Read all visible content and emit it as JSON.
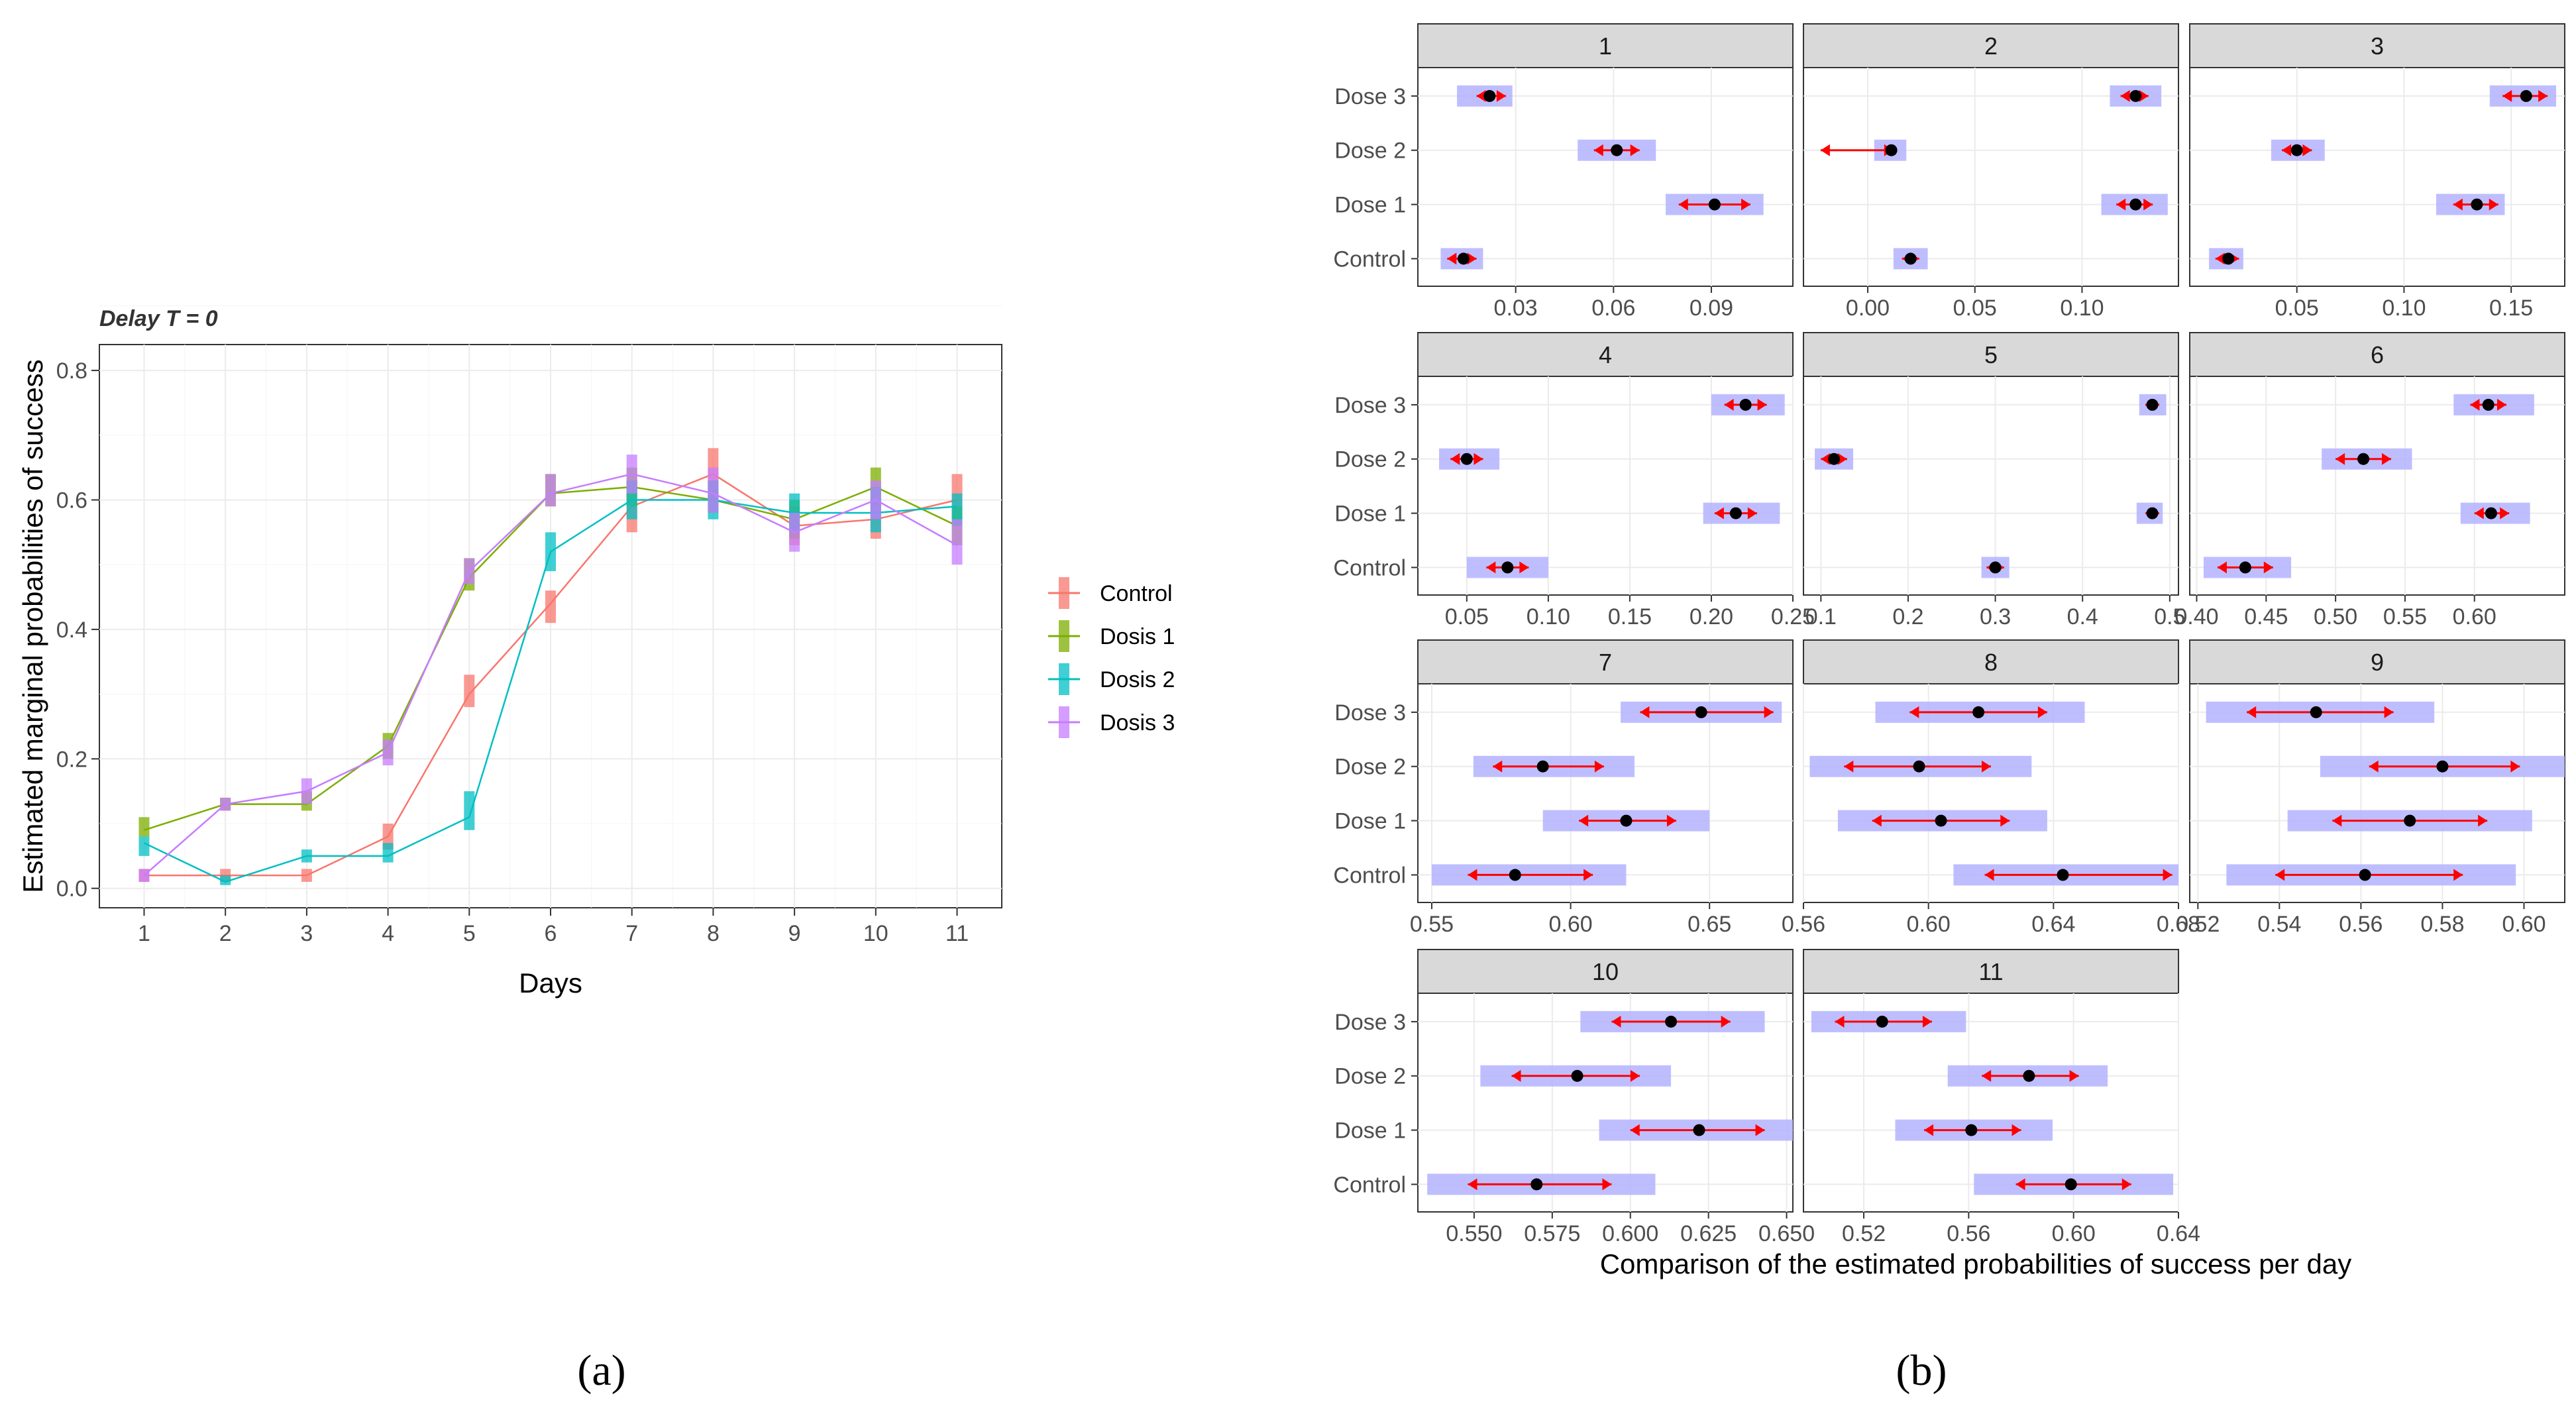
{
  "figure": {
    "caption_a": "(a)",
    "caption_b": "(b)"
  },
  "colors": {
    "Control": "#f8766d",
    "Dosis 1": "#7cae00",
    "Dosis 2": "#00bfc4",
    "Dosis 3": "#c77cff",
    "interval_fill": "#b3b3ff",
    "arrow": "#ff0000",
    "point": "#000000",
    "strip": "#d9d9d9"
  },
  "chart_data": [
    {
      "type": "line",
      "title": "Delay T = 0",
      "xlabel": "Days",
      "ylabel": "Estimated marginal probabilities of success",
      "xlim": [
        0.45,
        11.55
      ],
      "ylim": [
        -0.03,
        0.84
      ],
      "x_ticks": [
        "1",
        "2",
        "3",
        "4",
        "5",
        "6",
        "7",
        "8",
        "9",
        "10",
        "11"
      ],
      "y_ticks": [
        "0.0",
        "0.2",
        "0.4",
        "0.6",
        "0.8"
      ],
      "legend_position": "right",
      "categories": [
        1,
        2,
        3,
        4,
        5,
        6,
        7,
        8,
        9,
        10,
        11
      ],
      "series": [
        {
          "name": "Control",
          "values": [
            0.02,
            0.02,
            0.02,
            0.08,
            0.3,
            0.44,
            0.59,
            0.64,
            0.56,
            0.57,
            0.6
          ],
          "err_low": [
            0.01,
            0.01,
            0.01,
            0.06,
            0.28,
            0.41,
            0.55,
            0.6,
            0.53,
            0.54,
            0.56
          ],
          "err_high": [
            0.03,
            0.03,
            0.03,
            0.1,
            0.33,
            0.46,
            0.63,
            0.68,
            0.59,
            0.6,
            0.64
          ]
        },
        {
          "name": "Dosis 1",
          "values": [
            0.09,
            0.13,
            0.13,
            0.22,
            0.48,
            0.61,
            0.62,
            0.6,
            0.57,
            0.62,
            0.56
          ],
          "err_low": [
            0.08,
            0.12,
            0.12,
            0.2,
            0.46,
            0.59,
            0.59,
            0.58,
            0.54,
            0.59,
            0.53
          ],
          "err_high": [
            0.11,
            0.14,
            0.15,
            0.24,
            0.51,
            0.64,
            0.65,
            0.63,
            0.6,
            0.65,
            0.59
          ]
        },
        {
          "name": "Dosis 2",
          "values": [
            0.07,
            0.01,
            0.05,
            0.05,
            0.11,
            0.52,
            0.6,
            0.6,
            0.58,
            0.58,
            0.59
          ],
          "err_low": [
            0.05,
            0.005,
            0.04,
            0.04,
            0.09,
            0.49,
            0.57,
            0.57,
            0.55,
            0.55,
            0.56
          ],
          "err_high": [
            0.08,
            0.02,
            0.06,
            0.07,
            0.15,
            0.55,
            0.63,
            0.63,
            0.61,
            0.62,
            0.61
          ]
        },
        {
          "name": "Dosis 3",
          "values": [
            0.02,
            0.13,
            0.15,
            0.21,
            0.49,
            0.61,
            0.64,
            0.61,
            0.55,
            0.6,
            0.53
          ],
          "err_low": [
            0.01,
            0.12,
            0.13,
            0.19,
            0.47,
            0.59,
            0.61,
            0.58,
            0.52,
            0.57,
            0.5
          ],
          "err_high": [
            0.03,
            0.14,
            0.17,
            0.23,
            0.51,
            0.64,
            0.67,
            0.65,
            0.58,
            0.63,
            0.57
          ]
        }
      ]
    },
    {
      "type": "scatter",
      "xlabel": "Comparison of the estimated probabilities of success per day",
      "rows": [
        "Dose 3",
        "Dose 2",
        "Dose 1",
        "Control"
      ],
      "facets": [
        {
          "label": "1",
          "xlim": [
            0.0,
            0.115
          ],
          "x_ticks": [
            "0.03",
            "0.06",
            "0.09"
          ],
          "x_tick_values": [
            0.03,
            0.06,
            0.09
          ],
          "intervals": [
            {
              "row": "Dose 3",
              "estimate": 0.022,
              "low": 0.018,
              "high": 0.027,
              "band_low": 0.012,
              "band_high": 0.029
            },
            {
              "row": "Dose 2",
              "estimate": 0.061,
              "low": 0.054,
              "high": 0.068,
              "band_low": 0.049,
              "band_high": 0.073
            },
            {
              "row": "Dose 1",
              "estimate": 0.091,
              "low": 0.08,
              "high": 0.102,
              "band_low": 0.076,
              "band_high": 0.106
            },
            {
              "row": "Control",
              "estimate": 0.014,
              "low": 0.009,
              "high": 0.018,
              "band_low": 0.007,
              "band_high": 0.02
            }
          ]
        },
        {
          "label": "2",
          "xlim": [
            -0.03,
            0.145
          ],
          "x_ticks": [
            "0.00",
            "0.05",
            "0.10"
          ],
          "x_tick_values": [
            0.0,
            0.05,
            0.1
          ],
          "intervals": [
            {
              "row": "Dose 3",
              "estimate": 0.125,
              "low": 0.118,
              "high": 0.131,
              "band_low": 0.113,
              "band_high": 0.137
            },
            {
              "row": "Dose 2",
              "estimate": 0.011,
              "low": -0.022,
              "high": 0.012,
              "band_low": 0.003,
              "band_high": 0.018
            },
            {
              "row": "Dose 1",
              "estimate": 0.125,
              "low": 0.116,
              "high": 0.133,
              "band_low": 0.109,
              "band_high": 0.14
            },
            {
              "row": "Control",
              "estimate": 0.02,
              "low": 0.016,
              "high": 0.024,
              "band_low": 0.012,
              "band_high": 0.028
            }
          ]
        },
        {
          "label": "3",
          "xlim": [
            0.0,
            0.175
          ],
          "x_ticks": [
            "0.05",
            "0.10",
            "0.15"
          ],
          "x_tick_values": [
            0.05,
            0.1,
            0.15
          ],
          "intervals": [
            {
              "row": "Dose 3",
              "estimate": 0.157,
              "low": 0.146,
              "high": 0.167,
              "band_low": 0.14,
              "band_high": 0.171
            },
            {
              "row": "Dose 2",
              "estimate": 0.05,
              "low": 0.043,
              "high": 0.057,
              "band_low": 0.038,
              "band_high": 0.063
            },
            {
              "row": "Dose 1",
              "estimate": 0.134,
              "low": 0.123,
              "high": 0.144,
              "band_low": 0.115,
              "band_high": 0.147
            },
            {
              "row": "Control",
              "estimate": 0.018,
              "low": 0.012,
              "high": 0.023,
              "band_low": 0.009,
              "band_high": 0.025
            }
          ]
        },
        {
          "label": "4",
          "xlim": [
            0.02,
            0.25
          ],
          "x_ticks": [
            "0.05",
            "0.10",
            "0.15",
            "0.20",
            "0.25"
          ],
          "x_tick_values": [
            0.05,
            0.1,
            0.15,
            0.2,
            0.25
          ],
          "intervals": [
            {
              "row": "Dose 3",
              "estimate": 0.221,
              "low": 0.208,
              "high": 0.234,
              "band_low": 0.2,
              "band_high": 0.245
            },
            {
              "row": "Dose 2",
              "estimate": 0.05,
              "low": 0.04,
              "high": 0.06,
              "band_low": 0.033,
              "band_high": 0.07
            },
            {
              "row": "Dose 1",
              "estimate": 0.215,
              "low": 0.202,
              "high": 0.228,
              "band_low": 0.195,
              "band_high": 0.242
            },
            {
              "row": "Control",
              "estimate": 0.075,
              "low": 0.062,
              "high": 0.088,
              "band_low": 0.05,
              "band_high": 0.1
            }
          ]
        },
        {
          "label": "5",
          "xlim": [
            0.08,
            0.51
          ],
          "x_ticks": [
            "0.1",
            "0.2",
            "0.3",
            "0.4",
            "0.5"
          ],
          "x_tick_values": [
            0.1,
            0.2,
            0.3,
            0.4,
            0.5
          ],
          "intervals": [
            {
              "row": "Dose 3",
              "estimate": 0.48,
              "low": 0.472,
              "high": 0.488,
              "band_low": 0.465,
              "band_high": 0.496
            },
            {
              "row": "Dose 2",
              "estimate": 0.115,
              "low": 0.1,
              "high": 0.13,
              "band_low": 0.093,
              "band_high": 0.137
            },
            {
              "row": "Dose 1",
              "estimate": 0.48,
              "low": 0.472,
              "high": 0.488,
              "band_low": 0.462,
              "band_high": 0.492
            },
            {
              "row": "Control",
              "estimate": 0.3,
              "low": 0.29,
              "high": 0.31,
              "band_low": 0.284,
              "band_high": 0.316
            }
          ]
        },
        {
          "label": "6",
          "xlim": [
            0.395,
            0.665
          ],
          "x_ticks": [
            "0.40",
            "0.45",
            "0.50",
            "0.55",
            "0.60"
          ],
          "x_tick_values": [
            0.4,
            0.45,
            0.5,
            0.55,
            0.6
          ],
          "intervals": [
            {
              "row": "Dose 3",
              "estimate": 0.61,
              "low": 0.597,
              "high": 0.623,
              "band_low": 0.585,
              "band_high": 0.643
            },
            {
              "row": "Dose 2",
              "estimate": 0.52,
              "low": 0.5,
              "high": 0.54,
              "band_low": 0.49,
              "band_high": 0.555
            },
            {
              "row": "Dose 1",
              "estimate": 0.612,
              "low": 0.6,
              "high": 0.625,
              "band_low": 0.59,
              "band_high": 0.64
            },
            {
              "row": "Control",
              "estimate": 0.435,
              "low": 0.415,
              "high": 0.455,
              "band_low": 0.405,
              "band_high": 0.468
            }
          ]
        },
        {
          "label": "7",
          "xlim": [
            0.545,
            0.68
          ],
          "x_ticks": [
            "0.55",
            "0.60",
            "0.65"
          ],
          "x_tick_values": [
            0.55,
            0.6,
            0.65
          ],
          "intervals": [
            {
              "row": "Dose 3",
              "estimate": 0.647,
              "low": 0.625,
              "high": 0.673,
              "band_low": 0.618,
              "band_high": 0.676
            },
            {
              "row": "Dose 2",
              "estimate": 0.59,
              "low": 0.572,
              "high": 0.612,
              "band_low": 0.565,
              "band_high": 0.623
            },
            {
              "row": "Dose 1",
              "estimate": 0.62,
              "low": 0.603,
              "high": 0.638,
              "band_low": 0.59,
              "band_high": 0.65
            },
            {
              "row": "Control",
              "estimate": 0.58,
              "low": 0.563,
              "high": 0.608,
              "band_low": 0.55,
              "band_high": 0.62
            }
          ]
        },
        {
          "label": "8",
          "xlim": [
            0.56,
            0.68
          ],
          "x_ticks": [
            "0.56",
            "0.60",
            "0.64",
            "0.68"
          ],
          "x_tick_values": [
            0.56,
            0.6,
            0.64,
            0.68
          ],
          "intervals": [
            {
              "row": "Dose 3",
              "estimate": 0.616,
              "low": 0.594,
              "high": 0.638,
              "band_low": 0.583,
              "band_high": 0.65
            },
            {
              "row": "Dose 2",
              "estimate": 0.597,
              "low": 0.573,
              "high": 0.62,
              "band_low": 0.562,
              "band_high": 0.633
            },
            {
              "row": "Dose 1",
              "estimate": 0.604,
              "low": 0.582,
              "high": 0.626,
              "band_low": 0.571,
              "band_high": 0.638
            },
            {
              "row": "Control",
              "estimate": 0.643,
              "low": 0.618,
              "high": 0.678,
              "band_low": 0.608,
              "band_high": 0.68
            }
          ]
        },
        {
          "label": "9",
          "xlim": [
            0.518,
            0.61
          ],
          "x_ticks": [
            "0.52",
            "0.54",
            "0.56",
            "0.58",
            "0.60"
          ],
          "x_tick_values": [
            0.52,
            0.54,
            0.56,
            0.58,
            0.6
          ],
          "intervals": [
            {
              "row": "Dose 3",
              "estimate": 0.549,
              "low": 0.532,
              "high": 0.568,
              "band_low": 0.522,
              "band_high": 0.578
            },
            {
              "row": "Dose 2",
              "estimate": 0.58,
              "low": 0.562,
              "high": 0.599,
              "band_low": 0.55,
              "band_high": 0.61
            },
            {
              "row": "Dose 1",
              "estimate": 0.572,
              "low": 0.553,
              "high": 0.591,
              "band_low": 0.542,
              "band_high": 0.602
            },
            {
              "row": "Control",
              "estimate": 0.561,
              "low": 0.539,
              "high": 0.585,
              "band_low": 0.527,
              "band_high": 0.598
            }
          ]
        },
        {
          "label": "10",
          "xlim": [
            0.532,
            0.652
          ],
          "x_ticks": [
            "0.550",
            "0.575",
            "0.600",
            "0.625",
            "0.650"
          ],
          "x_tick_values": [
            0.55,
            0.575,
            0.6,
            0.625,
            0.65
          ],
          "intervals": [
            {
              "row": "Dose 3",
              "estimate": 0.613,
              "low": 0.594,
              "high": 0.632,
              "band_low": 0.584,
              "band_high": 0.643
            },
            {
              "row": "Dose 2",
              "estimate": 0.583,
              "low": 0.562,
              "high": 0.603,
              "band_low": 0.552,
              "band_high": 0.613
            },
            {
              "row": "Dose 1",
              "estimate": 0.622,
              "low": 0.6,
              "high": 0.643,
              "band_low": 0.59,
              "band_high": 0.652
            },
            {
              "row": "Control",
              "estimate": 0.57,
              "low": 0.548,
              "high": 0.594,
              "band_low": 0.535,
              "band_high": 0.608
            }
          ]
        },
        {
          "label": "11",
          "xlim": [
            0.497,
            0.64
          ],
          "x_ticks": [
            "0.52",
            "0.56",
            "0.60",
            "0.64"
          ],
          "x_tick_values": [
            0.52,
            0.56,
            0.6,
            0.64
          ],
          "intervals": [
            {
              "row": "Dose 3",
              "estimate": 0.527,
              "low": 0.509,
              "high": 0.546,
              "band_low": 0.5,
              "band_high": 0.559
            },
            {
              "row": "Dose 2",
              "estimate": 0.583,
              "low": 0.565,
              "high": 0.602,
              "band_low": 0.552,
              "band_high": 0.613
            },
            {
              "row": "Dose 1",
              "estimate": 0.561,
              "low": 0.543,
              "high": 0.58,
              "band_low": 0.532,
              "band_high": 0.592
            },
            {
              "row": "Control",
              "estimate": 0.599,
              "low": 0.578,
              "high": 0.622,
              "band_low": 0.562,
              "band_high": 0.638
            }
          ]
        }
      ]
    }
  ]
}
